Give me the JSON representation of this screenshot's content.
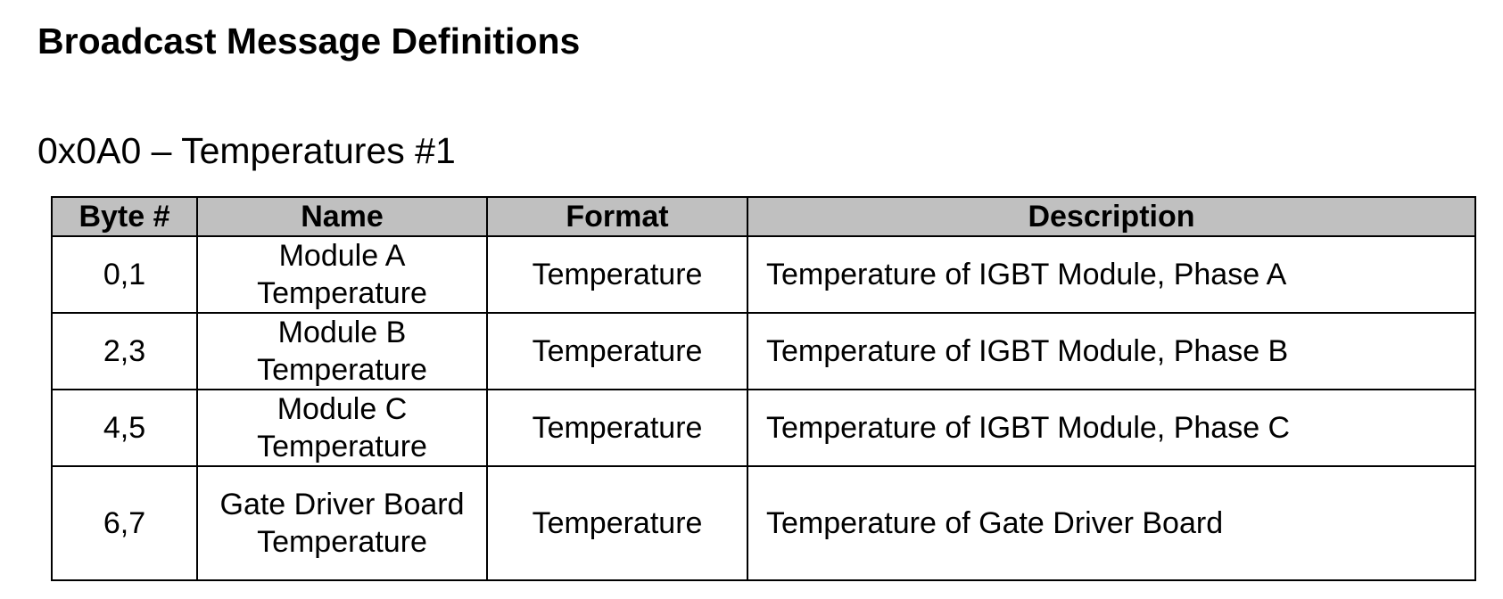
{
  "document": {
    "heading": "Broadcast Message Definitions",
    "subheading": "0x0A0 – Temperatures #1"
  },
  "table": {
    "headers": {
      "byte": "Byte #",
      "name": "Name",
      "format": "Format",
      "description": "Description"
    },
    "header_background": "#c0c0c0",
    "rows": [
      {
        "byte": "0,1",
        "name": "Module A Temperature",
        "format": "Temperature",
        "description": "Temperature of IGBT Module, Phase A"
      },
      {
        "byte": "2,3",
        "name": "Module B Temperature",
        "format": "Temperature",
        "description": "Temperature of IGBT Module, Phase B"
      },
      {
        "byte": "4,5",
        "name": "Module C Temperature",
        "format": "Temperature",
        "description": "Temperature of IGBT Module, Phase C"
      },
      {
        "byte": "6,7",
        "name": "Gate Driver Board Temperature",
        "format": "Temperature",
        "description": "Temperature of Gate Driver Board"
      }
    ]
  }
}
